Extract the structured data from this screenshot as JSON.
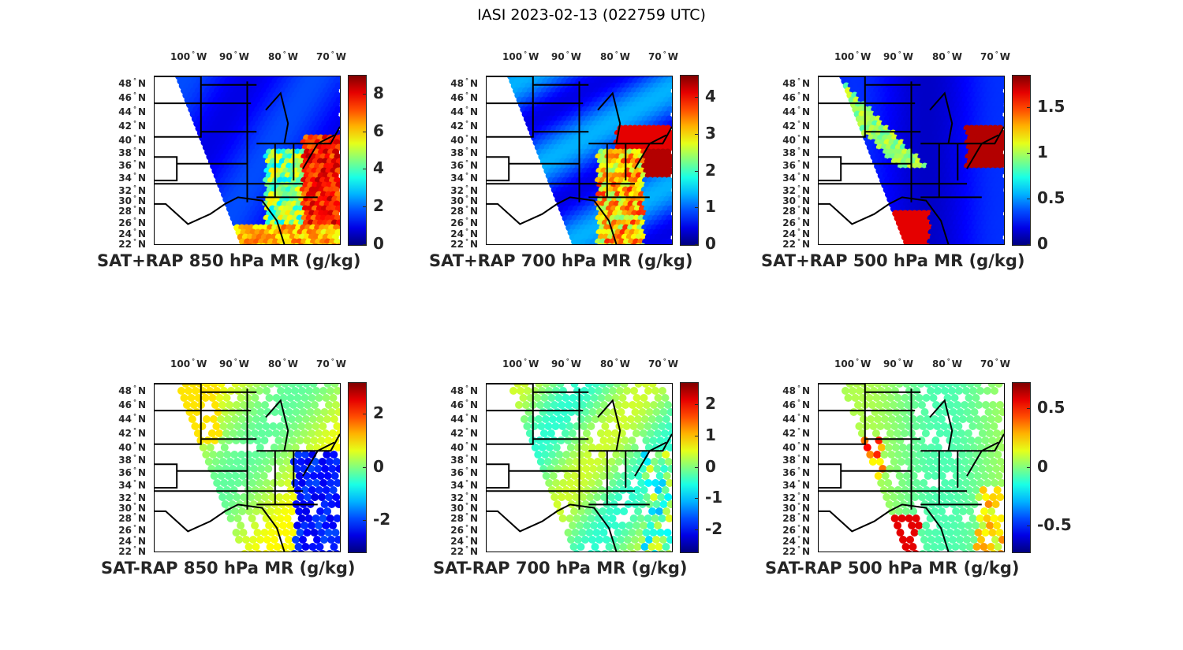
{
  "figure_title": "IASI 2023-02-13 (022759 UTC)",
  "chart_data": [
    {
      "type": "heatmap",
      "title": "SAT+RAP 850 hPa MR (g/kg)",
      "lon_ticks": [
        "100",
        "90",
        "80",
        "70"
      ],
      "lon_suffix": "W",
      "lat_ticks": [
        "48",
        "46",
        "44",
        "42",
        "40",
        "38",
        "36",
        "34",
        "32",
        "30",
        "28",
        "26",
        "24",
        "22"
      ],
      "lat_suffix": "N",
      "colorbar": {
        "colormap": "jet",
        "clim": [
          0,
          9
        ],
        "ticks": [
          "0",
          "2",
          "4",
          "6",
          "8"
        ],
        "tick_values": [
          0,
          2,
          4,
          6,
          8
        ]
      },
      "pattern": "moist850"
    },
    {
      "type": "heatmap",
      "title": "SAT+RAP 700 hPa MR (g/kg)",
      "lon_ticks": [
        "100",
        "90",
        "80",
        "70"
      ],
      "lon_suffix": "W",
      "lat_ticks": [
        "48",
        "46",
        "44",
        "42",
        "40",
        "38",
        "36",
        "34",
        "32",
        "30",
        "28",
        "26",
        "24",
        "22"
      ],
      "lat_suffix": "N",
      "colorbar": {
        "colormap": "jet",
        "clim": [
          0,
          4.6
        ],
        "ticks": [
          "0",
          "1",
          "2",
          "3",
          "4"
        ],
        "tick_values": [
          0,
          1,
          2,
          3,
          4
        ]
      },
      "pattern": "moist700"
    },
    {
      "type": "heatmap",
      "title": "SAT+RAP 500 hPa MR (g/kg)",
      "lon_ticks": [
        "100",
        "90",
        "80",
        "70"
      ],
      "lon_suffix": "W",
      "lat_ticks": [
        "48",
        "46",
        "44",
        "42",
        "40",
        "38",
        "36",
        "34",
        "32",
        "30",
        "28",
        "26",
        "24",
        "22"
      ],
      "lat_suffix": "N",
      "colorbar": {
        "colormap": "jet",
        "clim": [
          0,
          1.85
        ],
        "ticks": [
          "0",
          "0.5",
          "1",
          "1.5"
        ],
        "tick_values": [
          0,
          0.5,
          1,
          1.5
        ]
      },
      "pattern": "moist500"
    },
    {
      "type": "heatmap",
      "title": "SAT-RAP 850 hPa MR (g/kg)",
      "lon_ticks": [
        "100",
        "90",
        "80",
        "70"
      ],
      "lon_suffix": "W",
      "lat_ticks": [
        "48",
        "46",
        "44",
        "42",
        "40",
        "38",
        "36",
        "34",
        "32",
        "30",
        "28",
        "26",
        "24",
        "22"
      ],
      "lat_suffix": "N",
      "colorbar": {
        "colormap": "jet",
        "clim": [
          -3.2,
          3.2
        ],
        "ticks": [
          "-2",
          "0",
          "2"
        ],
        "tick_values": [
          -2,
          0,
          2
        ]
      },
      "pattern": "diff850"
    },
    {
      "type": "heatmap",
      "title": "SAT-RAP 700 hPa MR (g/kg)",
      "lon_ticks": [
        "100",
        "90",
        "80",
        "70"
      ],
      "lon_suffix": "W",
      "lat_ticks": [
        "48",
        "46",
        "44",
        "42",
        "40",
        "38",
        "36",
        "34",
        "32",
        "30",
        "28",
        "26",
        "24",
        "22"
      ],
      "lat_suffix": "N",
      "colorbar": {
        "colormap": "jet",
        "clim": [
          -2.7,
          2.7
        ],
        "ticks": [
          "-2",
          "-1",
          "0",
          "1",
          "2"
        ],
        "tick_values": [
          -2,
          -1,
          0,
          1,
          2
        ]
      },
      "pattern": "diff700"
    },
    {
      "type": "heatmap",
      "title": "SAT-RAP 500 hPa MR (g/kg)",
      "lon_ticks": [
        "100",
        "90",
        "80",
        "70"
      ],
      "lon_suffix": "W",
      "lat_ticks": [
        "48",
        "46",
        "44",
        "42",
        "40",
        "38",
        "36",
        "34",
        "32",
        "30",
        "28",
        "26",
        "24",
        "22"
      ],
      "lat_suffix": "N",
      "colorbar": {
        "colormap": "jet",
        "clim": [
          -0.72,
          0.72
        ],
        "ticks": [
          "-0.5",
          "0",
          "0.5"
        ],
        "tick_values": [
          -0.5,
          0,
          0.5
        ]
      },
      "pattern": "diff500"
    }
  ]
}
